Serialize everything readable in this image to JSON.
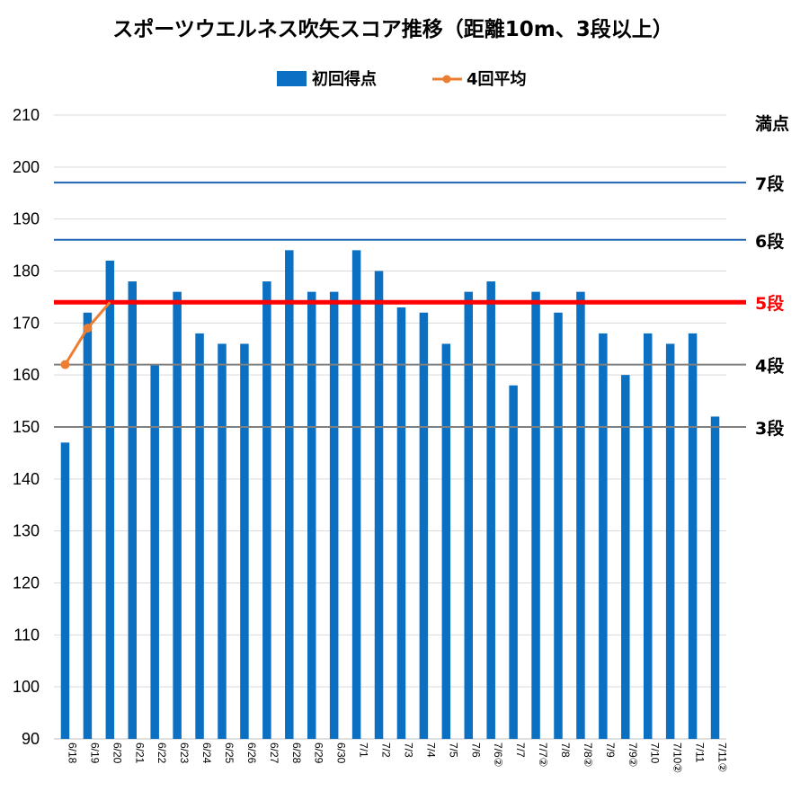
{
  "chart_data": {
    "type": "bar",
    "title": "スポーツウエルネス吹矢スコア推移（距離10m、3段以上）",
    "xlabel": "",
    "ylabel": "",
    "ylim": [
      90,
      210
    ],
    "yticks": [
      90,
      100,
      110,
      120,
      130,
      140,
      150,
      160,
      170,
      180,
      190,
      200,
      210
    ],
    "grid": true,
    "legend_position": "top-center",
    "categories": [
      "6/18",
      "6/19",
      "6/20",
      "6/21",
      "6/22",
      "6/23",
      "6/24",
      "6/25",
      "6/26",
      "6/27",
      "6/28",
      "6/29",
      "6/30",
      "7/1",
      "7/2",
      "7/3",
      "7/4",
      "7/5",
      "7/6",
      "7/6②",
      "7/7",
      "7/7②",
      "7/8",
      "7/8②",
      "7/9",
      "7/9②",
      "7/10",
      "7/10②",
      "7/11",
      "7/11②"
    ],
    "series": [
      {
        "name": "初回得点",
        "type": "bar",
        "color": "#0B6FC2",
        "values": [
          147,
          172,
          182,
          178,
          162,
          176,
          168,
          166,
          166,
          178,
          184,
          176,
          176,
          184,
          180,
          173,
          172,
          166,
          176,
          178,
          158,
          176,
          172,
          176,
          168,
          160,
          168,
          166,
          168,
          152
        ]
      },
      {
        "name": "4回平均",
        "type": "line",
        "color": "#ED7D31",
        "values": [
          162,
          169,
          174,
          null,
          null,
          null,
          null,
          null,
          null,
          null,
          null,
          null,
          null,
          null,
          null,
          null,
          null,
          null,
          null,
          null,
          null,
          null,
          null,
          null,
          null,
          null,
          null,
          null,
          null,
          null
        ]
      }
    ],
    "reference_lines": [
      {
        "label": "満点",
        "value": 210,
        "color": "#d9d9d9",
        "label_color": "#000000",
        "width": 1
      },
      {
        "label": "7段",
        "value": 197,
        "color": "#1f64b4",
        "label_color": "#000000",
        "width": 2
      },
      {
        "label": "6段",
        "value": 186,
        "color": "#1f64b4",
        "label_color": "#000000",
        "width": 2
      },
      {
        "label": "5段",
        "value": 174,
        "color": "#ff0000",
        "label_color": "#ff0000",
        "width": 5
      },
      {
        "label": "4段",
        "value": 162,
        "color": "#808080",
        "label_color": "#000000",
        "width": 2
      },
      {
        "label": "3段",
        "value": 150,
        "color": "#808080",
        "label_color": "#000000",
        "width": 2
      }
    ]
  }
}
